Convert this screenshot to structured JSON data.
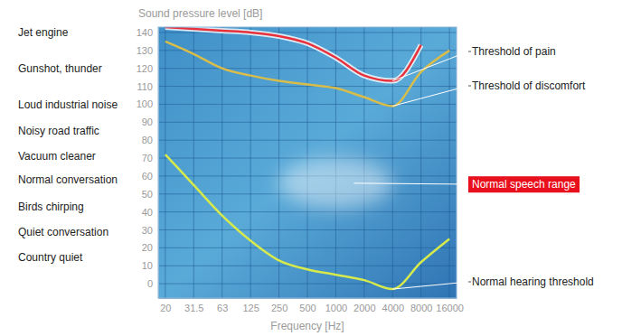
{
  "chart_data": {
    "type": "line",
    "y_label": "Sound pressure level [dB]",
    "x_label": "Frequency [Hz]",
    "categories": [
      "20",
      "31.5",
      "63",
      "125",
      "250",
      "500",
      "1000",
      "2000",
      "4000",
      "8000",
      "16000"
    ],
    "series": [
      {
        "name": "Threshold of pain",
        "color": "#e8313a",
        "values": [
          143,
          142,
          141,
          140,
          138,
          134,
          126,
          116,
          113,
          133,
          null
        ]
      },
      {
        "name": "Threshold of discomfort",
        "color": "#d9bd4a",
        "values": [
          135,
          128,
          120,
          116,
          113,
          111,
          109,
          104,
          99,
          118,
          130
        ]
      },
      {
        "name": "Normal hearing threshold",
        "color": "#d6ea4c",
        "values": [
          72,
          55,
          38,
          24,
          13,
          8,
          5,
          2,
          -3,
          12,
          25
        ]
      }
    ],
    "speech_range": {
      "label": "Normal speech range",
      "x": [
        "250",
        "4000"
      ],
      "y": [
        42,
        70
      ]
    },
    "annotations": [
      {
        "text": "Jet engine",
        "value": 140
      },
      {
        "text": "Gunshot, thunder",
        "value": 120
      },
      {
        "text": "Loud industrial noise",
        "value": 100
      },
      {
        "text": "Noisy road traffic",
        "value": 85
      },
      {
        "text": "Vacuum cleaner",
        "value": 71
      },
      {
        "text": "Normal conversation",
        "value": 58
      },
      {
        "text": "Birds chirping",
        "value": 43
      },
      {
        "text": "Quiet conversation",
        "value": 29
      },
      {
        "text": "Country quiet",
        "value": 15
      }
    ],
    "ylim": [
      -8,
      143
    ],
    "yticks": [
      0,
      10,
      20,
      30,
      40,
      50,
      60,
      70,
      80,
      90,
      100,
      110,
      120,
      130,
      140
    ],
    "grid": true
  }
}
